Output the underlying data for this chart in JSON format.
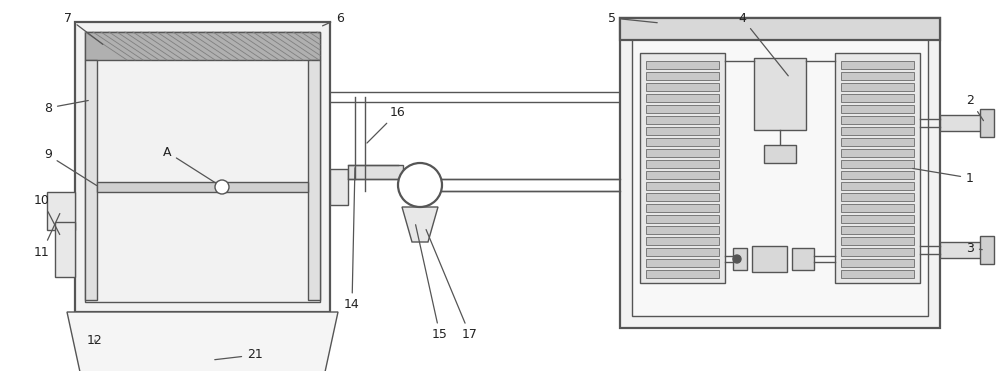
{
  "bg_color": "#ffffff",
  "line_color": "#555555",
  "lw": 1.0,
  "lw_thick": 1.6,
  "fig_width": 10.0,
  "fig_height": 3.71,
  "label_fs": 9,
  "label_color": "#222222",
  "arrow_color": "#555555"
}
